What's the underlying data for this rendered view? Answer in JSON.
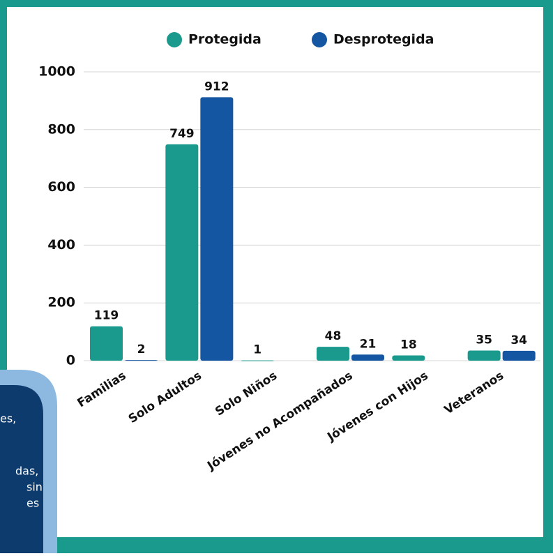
{
  "chart_data": {
    "type": "bar",
    "categories": [
      "Familias",
      "Solo Adultos",
      "Solo Niños",
      "Jóvenes no Acompañados",
      "Jóvenes con Hijos",
      "Veteranos"
    ],
    "series": [
      {
        "name": "Protegida",
        "color": "#1a9a8c",
        "values": [
          119,
          749,
          1,
          48,
          18,
          35
        ]
      },
      {
        "name": "Desprotegida",
        "color": "#1456a2",
        "values": [
          2,
          912,
          null,
          21,
          null,
          34
        ]
      }
    ],
    "ylim": [
      0,
      1000
    ],
    "yticks": [
      0,
      200,
      400,
      600,
      800,
      1000
    ],
    "grid": true,
    "legend": "top"
  },
  "overlay_text": [
    "es,",
    "das,",
    "sin",
    "es"
  ]
}
